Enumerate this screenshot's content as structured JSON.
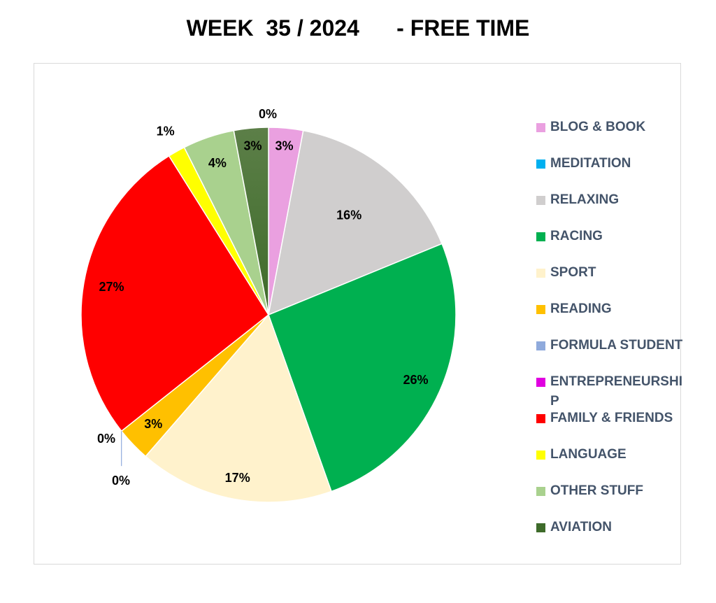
{
  "chart_data": {
    "type": "pie",
    "title": "WEEK  35 / 2024      - FREE TIME",
    "legend_position": "right",
    "slices": [
      {
        "name": "BLOG & BOOK",
        "value": 3,
        "label": "3%",
        "color": "#eaa0e0"
      },
      {
        "name": "MEDITATION",
        "value": 0,
        "label": "0%",
        "color": "#00b0f0"
      },
      {
        "name": "RELAXING",
        "value": 16,
        "label": "16%",
        "color": "#d0cece"
      },
      {
        "name": "RACING",
        "value": 26,
        "label": "26%",
        "color": "#00b050"
      },
      {
        "name": "SPORT",
        "value": 17,
        "label": "17%",
        "color": "#fff2cc"
      },
      {
        "name": "READING",
        "value": 3,
        "label": "3%",
        "color": "#ffc000"
      },
      {
        "name": "FORMULA STUDENT",
        "value": 0,
        "label": "0%",
        "color": "#8faadc"
      },
      {
        "name": "ENTREPRENEURSHIP",
        "value": 0,
        "label": "0%",
        "color": "#e000e0"
      },
      {
        "name": "FAMILY & FRIENDS",
        "value": 27,
        "label": "27%",
        "color": "#ff0000"
      },
      {
        "name": "LANGUAGE",
        "value": 1.5,
        "label": "1%",
        "color": "#ffff00"
      },
      {
        "name": "OTHER STUFF",
        "value": 4.5,
        "label": "4%",
        "color": "#a9d18e"
      },
      {
        "name": "AVIATION",
        "value": 3,
        "label": "3%",
        "color": "#3e6b2a"
      }
    ],
    "aviation_gradient_top": "#5c7f48"
  }
}
